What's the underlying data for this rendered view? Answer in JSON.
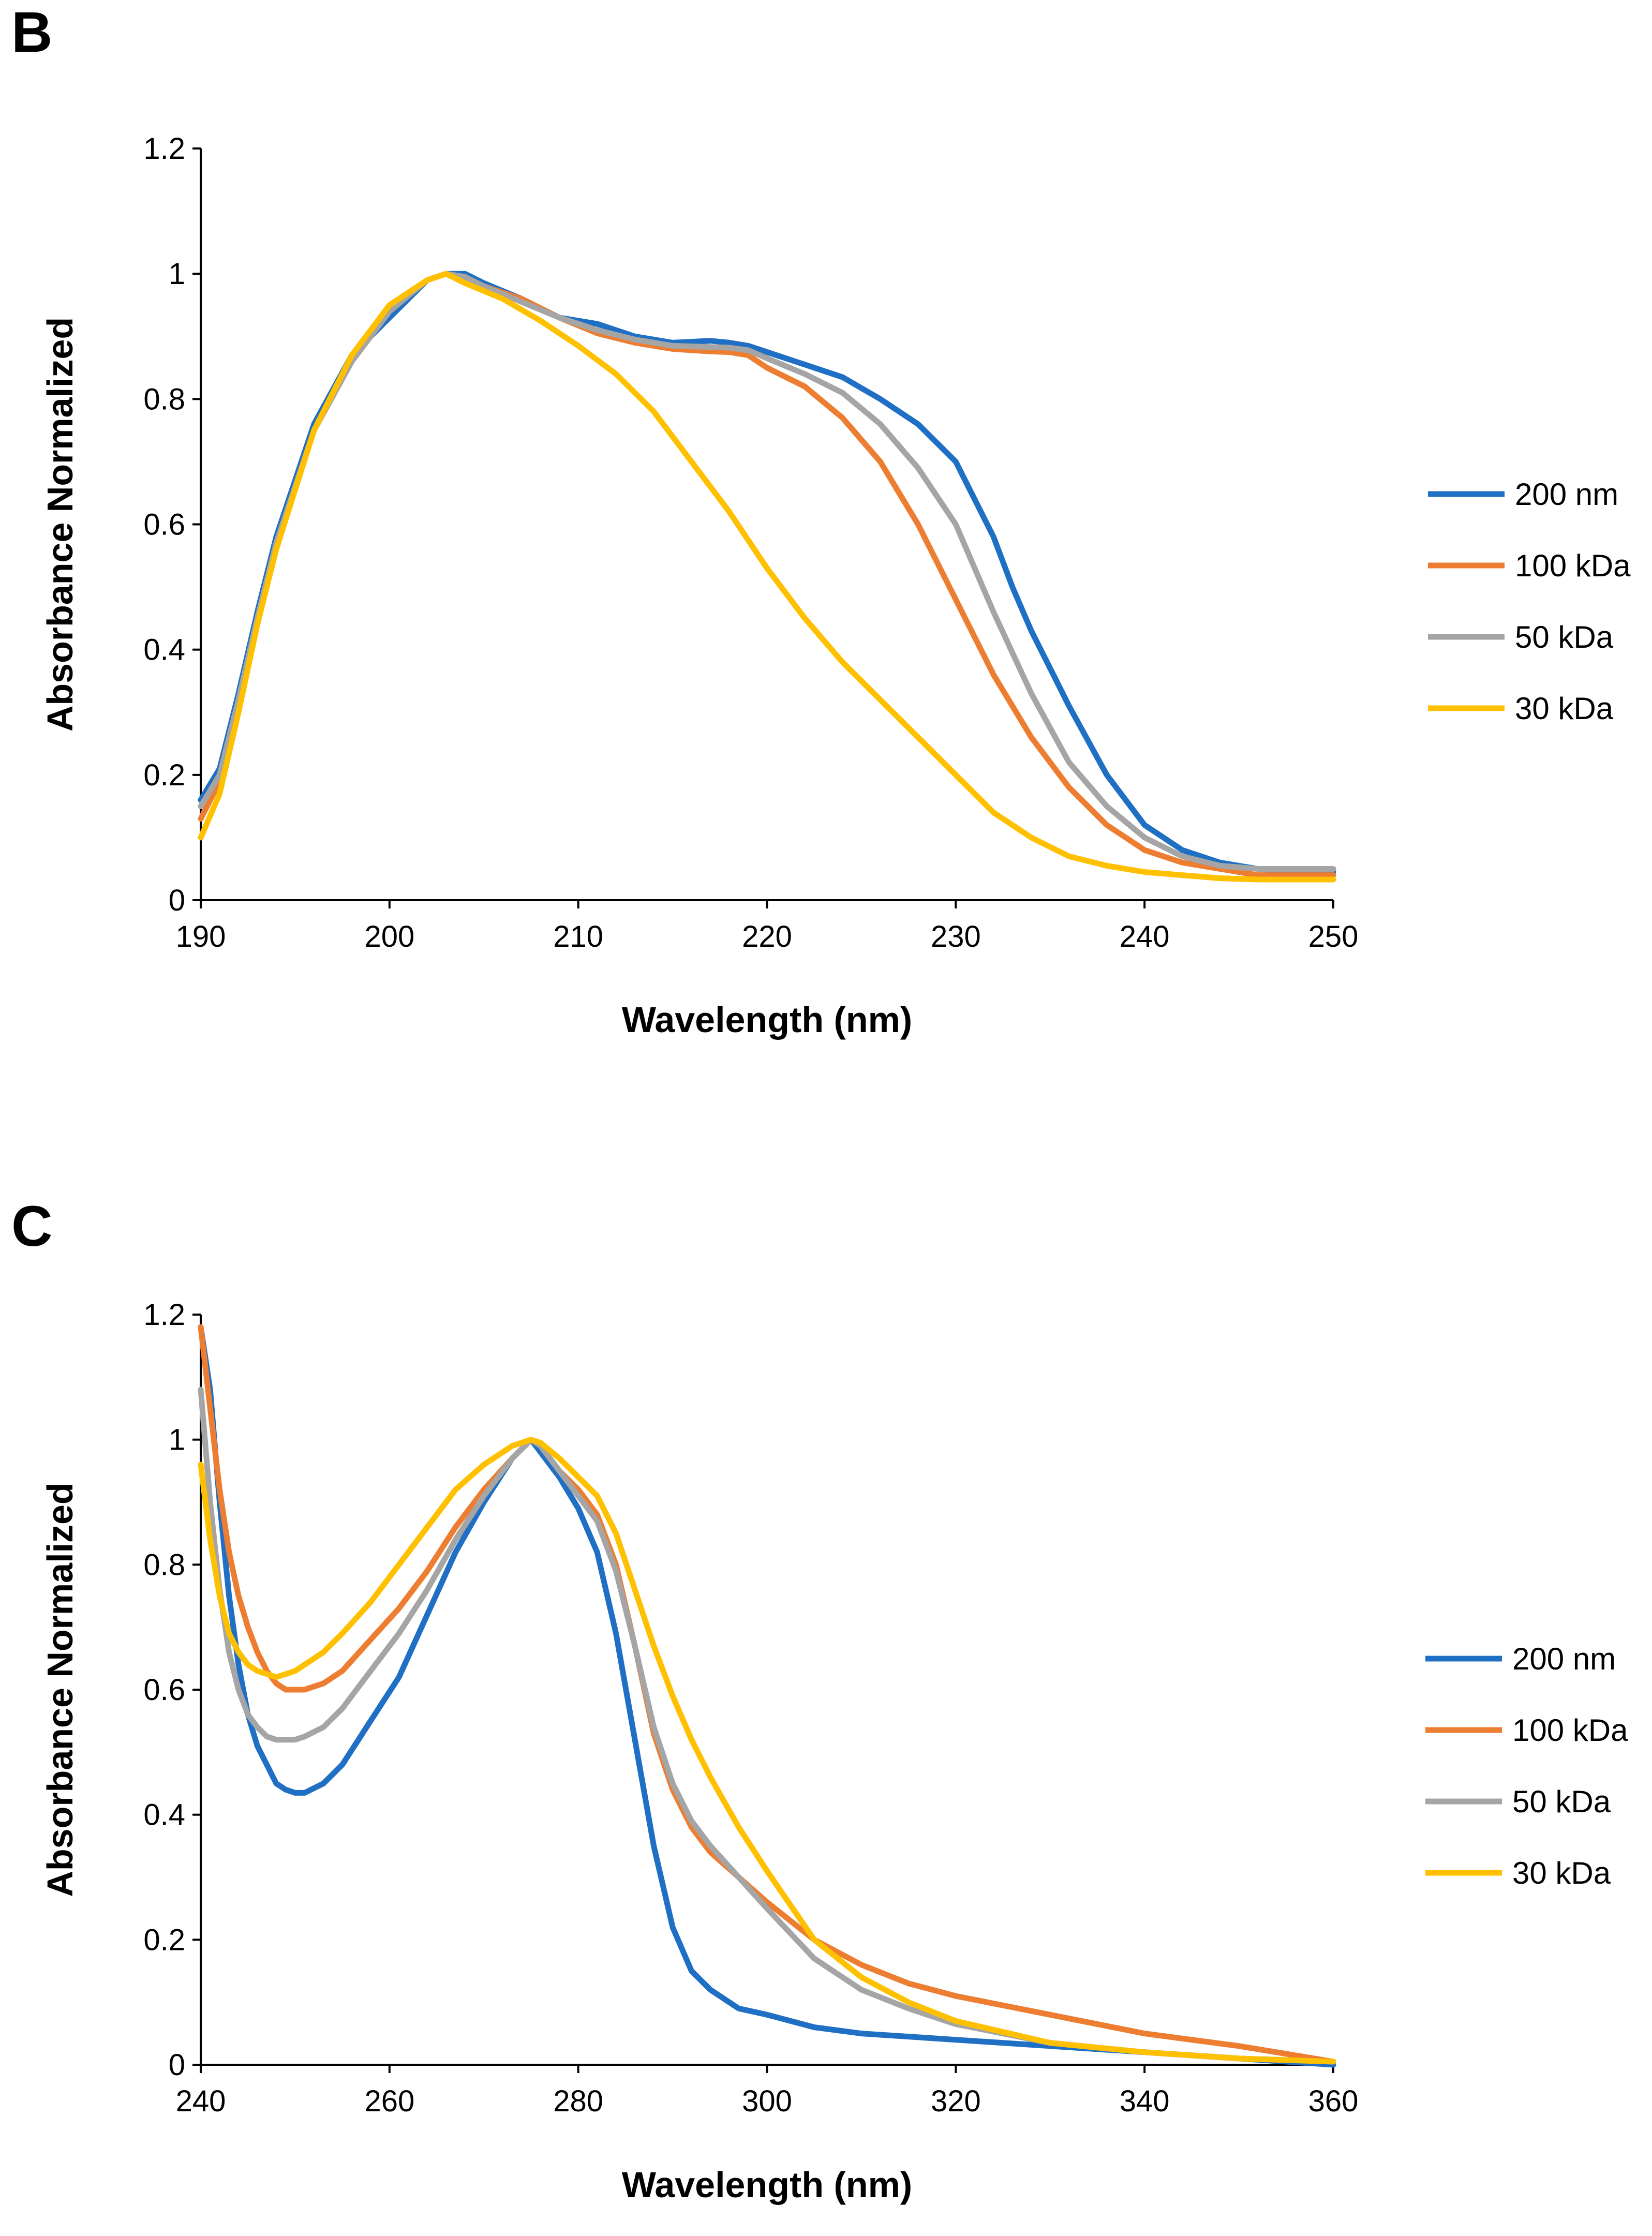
{
  "chart_data": [
    {
      "type": "line",
      "panel": "B",
      "title": "",
      "xlabel": "Wavelength (nm)",
      "ylabel": "Absorbance Normalized",
      "xlim": [
        190,
        250
      ],
      "ylim": [
        0,
        1.2
      ],
      "xticks": [
        190,
        200,
        210,
        220,
        230,
        240,
        250
      ],
      "yticks": [
        0,
        0.2,
        0.4,
        0.6,
        0.8,
        1,
        1.2
      ],
      "grid": false,
      "legend_position": "right",
      "series": [
        {
          "name": "200 nm",
          "color": "#1F6FC5",
          "x": [
            190,
            191,
            192,
            193,
            194,
            196,
            198,
            200,
            202,
            203,
            204,
            205,
            207,
            209,
            211,
            213,
            215,
            217,
            218,
            219,
            220,
            222,
            224,
            226,
            228,
            230,
            231,
            232,
            233,
            234,
            235,
            236,
            238,
            240,
            242,
            244,
            246,
            248,
            250
          ],
          "y": [
            0.16,
            0.21,
            0.33,
            0.46,
            0.58,
            0.76,
            0.87,
            0.93,
            0.99,
            1.0,
            1.0,
            0.985,
            0.96,
            0.93,
            0.92,
            0.9,
            0.89,
            0.893,
            0.89,
            0.885,
            0.875,
            0.855,
            0.835,
            0.8,
            0.76,
            0.7,
            0.64,
            0.58,
            0.5,
            0.43,
            0.37,
            0.31,
            0.2,
            0.12,
            0.08,
            0.06,
            0.05,
            0.045,
            0.045
          ]
        },
        {
          "name": "100 kDa",
          "color": "#ED7D31",
          "x": [
            190,
            191,
            192,
            193,
            194,
            196,
            198,
            200,
            202,
            203,
            204,
            205,
            207,
            209,
            211,
            213,
            215,
            217,
            218,
            219,
            220,
            222,
            224,
            226,
            228,
            230,
            232,
            234,
            236,
            238,
            240,
            242,
            244,
            246,
            248,
            250
          ],
          "y": [
            0.13,
            0.19,
            0.31,
            0.45,
            0.57,
            0.75,
            0.86,
            0.94,
            0.99,
            1.0,
            0.99,
            0.98,
            0.96,
            0.93,
            0.905,
            0.89,
            0.88,
            0.876,
            0.875,
            0.87,
            0.85,
            0.82,
            0.77,
            0.7,
            0.6,
            0.48,
            0.36,
            0.26,
            0.18,
            0.12,
            0.08,
            0.06,
            0.05,
            0.04,
            0.04,
            0.04
          ]
        },
        {
          "name": "50 kDa",
          "color": "#A5A5A5",
          "x": [
            190,
            191,
            192,
            193,
            194,
            196,
            198,
            200,
            202,
            203,
            204,
            205,
            207,
            209,
            211,
            213,
            215,
            217,
            218,
            219,
            220,
            222,
            224,
            226,
            228,
            230,
            232,
            234,
            236,
            238,
            240,
            242,
            244,
            246,
            248,
            250
          ],
          "y": [
            0.15,
            0.2,
            0.32,
            0.45,
            0.57,
            0.75,
            0.86,
            0.94,
            0.99,
            1.0,
            0.995,
            0.98,
            0.955,
            0.93,
            0.91,
            0.895,
            0.885,
            0.883,
            0.882,
            0.878,
            0.865,
            0.84,
            0.81,
            0.76,
            0.69,
            0.6,
            0.46,
            0.33,
            0.22,
            0.15,
            0.1,
            0.07,
            0.055,
            0.05,
            0.05,
            0.05
          ]
        },
        {
          "name": "30 kDa",
          "color": "#FFC000",
          "x": [
            190,
            191,
            192,
            193,
            194,
            196,
            198,
            200,
            202,
            203,
            204,
            206,
            208,
            210,
            212,
            214,
            216,
            218,
            220,
            222,
            224,
            226,
            228,
            230,
            232,
            234,
            236,
            238,
            240,
            242,
            244,
            246,
            248,
            250
          ],
          "y": [
            0.1,
            0.17,
            0.3,
            0.44,
            0.56,
            0.75,
            0.87,
            0.95,
            0.99,
            1.0,
            0.985,
            0.96,
            0.925,
            0.885,
            0.84,
            0.78,
            0.7,
            0.62,
            0.53,
            0.45,
            0.38,
            0.32,
            0.26,
            0.2,
            0.14,
            0.1,
            0.07,
            0.055,
            0.045,
            0.04,
            0.035,
            0.033,
            0.033,
            0.033
          ]
        }
      ]
    },
    {
      "type": "line",
      "panel": "C",
      "title": "",
      "xlabel": "Wavelength (nm)",
      "ylabel": "Absorbance Normalized",
      "xlim": [
        240,
        360
      ],
      "ylim": [
        0,
        1.2
      ],
      "xticks": [
        240,
        260,
        280,
        300,
        320,
        340,
        360
      ],
      "yticks": [
        0,
        0.2,
        0.4,
        0.6,
        0.8,
        1,
        1.2
      ],
      "grid": false,
      "legend_position": "right",
      "series": [
        {
          "name": "200 nm",
          "color": "#1F6FC5",
          "x": [
            240,
            241,
            242,
            243,
            244,
            245,
            246,
            247,
            248,
            249,
            250,
            251,
            253,
            255,
            258,
            261,
            264,
            267,
            270,
            273,
            275,
            276,
            278,
            280,
            282,
            284,
            286,
            288,
            290,
            292,
            294,
            297,
            300,
            305,
            310,
            315,
            320,
            330,
            340,
            350,
            360
          ],
          "y": [
            1.18,
            1.08,
            0.9,
            0.75,
            0.64,
            0.56,
            0.51,
            0.48,
            0.45,
            0.44,
            0.435,
            0.435,
            0.45,
            0.48,
            0.55,
            0.62,
            0.72,
            0.82,
            0.9,
            0.97,
            1.0,
            0.98,
            0.94,
            0.89,
            0.82,
            0.69,
            0.52,
            0.35,
            0.22,
            0.15,
            0.12,
            0.09,
            0.08,
            0.06,
            0.05,
            0.045,
            0.04,
            0.03,
            0.02,
            0.01,
            0.0
          ]
        },
        {
          "name": "100 kDa",
          "color": "#ED7D31",
          "x": [
            240,
            241,
            242,
            243,
            244,
            245,
            246,
            247,
            248,
            249,
            250,
            251,
            253,
            255,
            258,
            261,
            264,
            267,
            270,
            273,
            275,
            276,
            278,
            280,
            282,
            284,
            286,
            288,
            290,
            292,
            294,
            297,
            300,
            305,
            310,
            315,
            320,
            330,
            340,
            350,
            360
          ],
          "y": [
            1.18,
            1.05,
            0.92,
            0.82,
            0.75,
            0.7,
            0.66,
            0.63,
            0.61,
            0.6,
            0.6,
            0.6,
            0.61,
            0.63,
            0.68,
            0.73,
            0.79,
            0.86,
            0.92,
            0.97,
            1.0,
            0.99,
            0.95,
            0.92,
            0.88,
            0.8,
            0.67,
            0.53,
            0.44,
            0.38,
            0.34,
            0.3,
            0.26,
            0.2,
            0.16,
            0.13,
            0.11,
            0.08,
            0.05,
            0.03,
            0.005
          ]
        },
        {
          "name": "50 kDa",
          "color": "#A5A5A5",
          "x": [
            240,
            241,
            242,
            243,
            244,
            245,
            246,
            247,
            248,
            249,
            250,
            251,
            253,
            255,
            258,
            261,
            264,
            267,
            270,
            273,
            275,
            276,
            278,
            280,
            282,
            284,
            286,
            288,
            290,
            292,
            294,
            297,
            300,
            305,
            310,
            315,
            320,
            330,
            340,
            350,
            360
          ],
          "y": [
            1.08,
            0.9,
            0.76,
            0.66,
            0.6,
            0.56,
            0.54,
            0.525,
            0.52,
            0.52,
            0.52,
            0.525,
            0.54,
            0.57,
            0.63,
            0.69,
            0.76,
            0.84,
            0.91,
            0.97,
            1.0,
            0.99,
            0.95,
            0.91,
            0.87,
            0.79,
            0.67,
            0.54,
            0.45,
            0.39,
            0.35,
            0.3,
            0.25,
            0.17,
            0.12,
            0.09,
            0.065,
            0.035,
            0.02,
            0.01,
            0.005
          ]
        },
        {
          "name": "30 kDa",
          "color": "#FFC000",
          "x": [
            240,
            241,
            242,
            243,
            244,
            245,
            246,
            247,
            248,
            249,
            250,
            251,
            253,
            255,
            258,
            261,
            264,
            267,
            270,
            273,
            275,
            276,
            278,
            280,
            282,
            284,
            286,
            288,
            290,
            292,
            294,
            297,
            300,
            305,
            310,
            315,
            320,
            330,
            340,
            350,
            360
          ],
          "y": [
            0.96,
            0.84,
            0.75,
            0.69,
            0.66,
            0.64,
            0.63,
            0.625,
            0.62,
            0.625,
            0.63,
            0.64,
            0.66,
            0.69,
            0.74,
            0.8,
            0.86,
            0.92,
            0.96,
            0.99,
            1.0,
            0.995,
            0.97,
            0.94,
            0.91,
            0.85,
            0.76,
            0.67,
            0.59,
            0.52,
            0.46,
            0.38,
            0.31,
            0.2,
            0.14,
            0.1,
            0.07,
            0.035,
            0.02,
            0.01,
            0.005
          ]
        }
      ]
    }
  ]
}
